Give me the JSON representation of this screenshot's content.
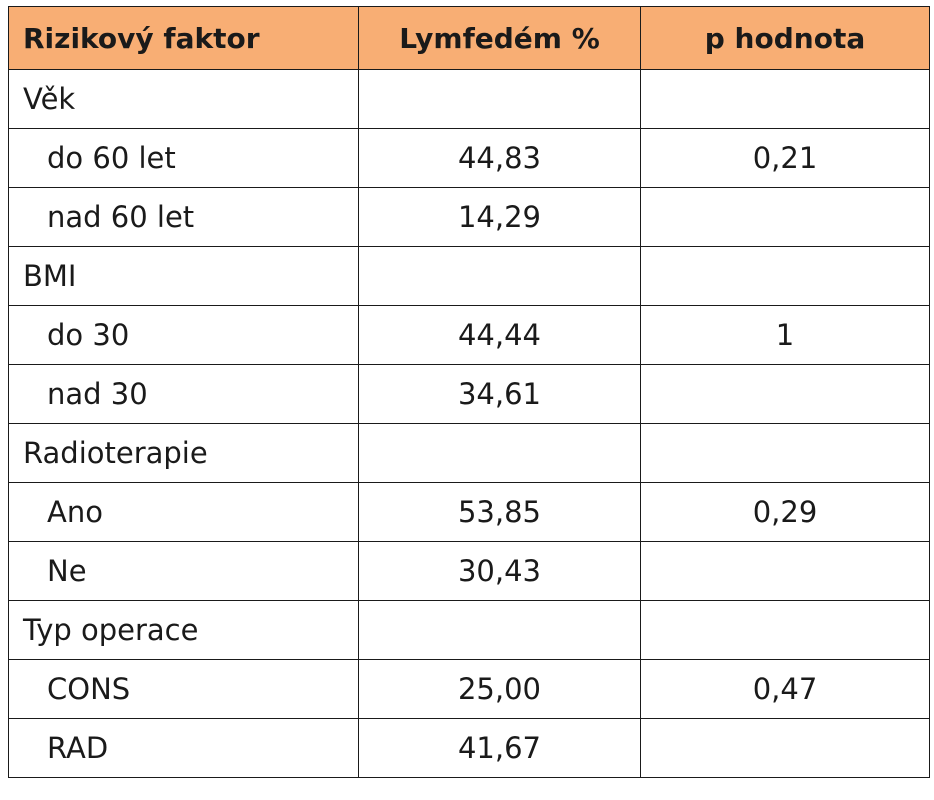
{
  "table": {
    "headers": [
      "Rizikový faktor",
      "Lymfedém %",
      "p hodnota"
    ],
    "rows": [
      {
        "kind": "group",
        "label": "Věk",
        "value": "",
        "p": ""
      },
      {
        "kind": "sub",
        "label": "do 60 let",
        "value": "44,83",
        "p": "0,21"
      },
      {
        "kind": "sub",
        "label": "nad 60 let",
        "value": "14,29",
        "p": ""
      },
      {
        "kind": "group",
        "label": "BMI",
        "value": "",
        "p": ""
      },
      {
        "kind": "sub",
        "label": "do 30",
        "value": "44,44",
        "p": "1"
      },
      {
        "kind": "sub",
        "label": "nad 30",
        "value": "34,61",
        "p": ""
      },
      {
        "kind": "group",
        "label": "Radioterapie",
        "value": "",
        "p": ""
      },
      {
        "kind": "sub",
        "label": "Ano",
        "value": "53,85",
        "p": "0,29"
      },
      {
        "kind": "sub",
        "label": "Ne",
        "value": "30,43",
        "p": ""
      },
      {
        "kind": "group",
        "label": "Typ operace",
        "value": "",
        "p": ""
      },
      {
        "kind": "sub",
        "label": "CONS",
        "value": "25,00",
        "p": "0,47"
      },
      {
        "kind": "sub",
        "label": "RAD",
        "value": "41,67",
        "p": ""
      }
    ]
  },
  "colors": {
    "header_bg": "#f8ae74",
    "border": "#1a1a1a",
    "text": "#1a1a1a"
  }
}
